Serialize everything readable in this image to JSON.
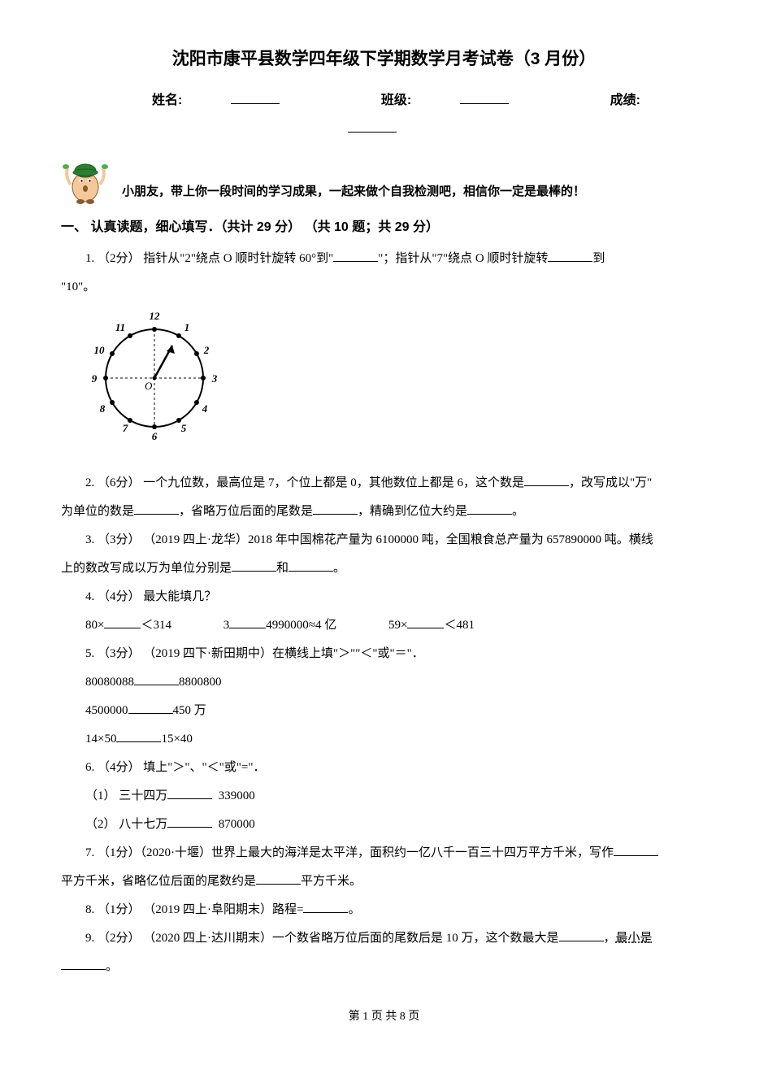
{
  "title": "沈阳市康平县数学四年级下学期数学月考试卷（3 月份）",
  "info": {
    "name_label": "姓名:",
    "class_label": "班级:",
    "score_label": "成绩:"
  },
  "intro": "小朋友，带上你一段时间的学习成果，一起来做个自我检测吧，相信你一定是最棒的！",
  "section1": {
    "heading": "一、 认真读题，细心填写．（共计 29 分） （共 10 题；共 29 分）"
  },
  "q1": {
    "prefix": "1. （2分） 指针从\"2\"绕点 O 顺时针旋转 60°到\"",
    "mid": "\"；指针从\"7\"绕点 O 顺时针旋转",
    "suffix": "到",
    "line2": "\"10\"。"
  },
  "clock": {
    "numbers": [
      "12",
      "1",
      "2",
      "3",
      "4",
      "5",
      "6",
      "7",
      "8",
      "9",
      "10",
      "11"
    ],
    "center_label": "O",
    "stroke": "#000000",
    "radius": 60
  },
  "q2": {
    "prefix": "2. （6分） 一个九位数，最高位是 7，个位上都是 0，其他数位上都是 6，这个数是",
    "mid1": "，改写成以\"万\"",
    "line2_prefix": "为单位的数是",
    "mid2": "，省略万位后面的尾数是",
    "mid3": "，精确到亿位大约是",
    "suffix": "。"
  },
  "q3": {
    "prefix": "3. （3分） （2019 四上·龙华）2018 年中国棉花产量为 6100000 吨，全国粮食总产量为 657890000 吨。横线",
    "line2_prefix": "上的数改写成以万为单位分别是",
    "mid": "和",
    "suffix": "。"
  },
  "q4": {
    "heading": "4. （4分） 最大能填几？",
    "a": "80×",
    "a_suffix": "＜314",
    "b": "3",
    "b_suffix": "4990000≈4 亿",
    "c": "59×",
    "c_suffix": "＜481"
  },
  "q5": {
    "heading": "5. （3分） （2019 四下·新田期中）在横线上填\"＞\"\"＜\"或\"＝\"．",
    "a_left": "80080088",
    "a_right": "8800800",
    "b_left": "4500000",
    "b_right": "450 万",
    "c_left": "14×50",
    "c_right": "15×40"
  },
  "q6": {
    "heading": "6. （4分） 填上\"＞\"、\"＜\"或\"=\"．",
    "a_label": "（1） 三十四万",
    "a_right": "339000",
    "b_label": "（2） 八十七万",
    "b_right": "870000"
  },
  "q7": {
    "prefix": "7. （1分）（2020·十堰）世界上最大的海洋是太平洋，面积约一亿八千一百三十四万平方千米，写作",
    "line2_prefix": "平方千米，省略亿位后面的尾数约是",
    "suffix": "平方千米。"
  },
  "q8": {
    "prefix": "8. （1分） （2019 四上·阜阳期末）路程=",
    "suffix": "。"
  },
  "q9": {
    "prefix": "9. （2分） （2020 四上·达川期末）一个数省略万位后面的尾数后是 10 万，这个数最大是",
    "mid": "，",
    "suffix_label": "最小是",
    "line2_suffix": "。"
  },
  "footer": {
    "text": "第 1 页 共 8 页"
  }
}
